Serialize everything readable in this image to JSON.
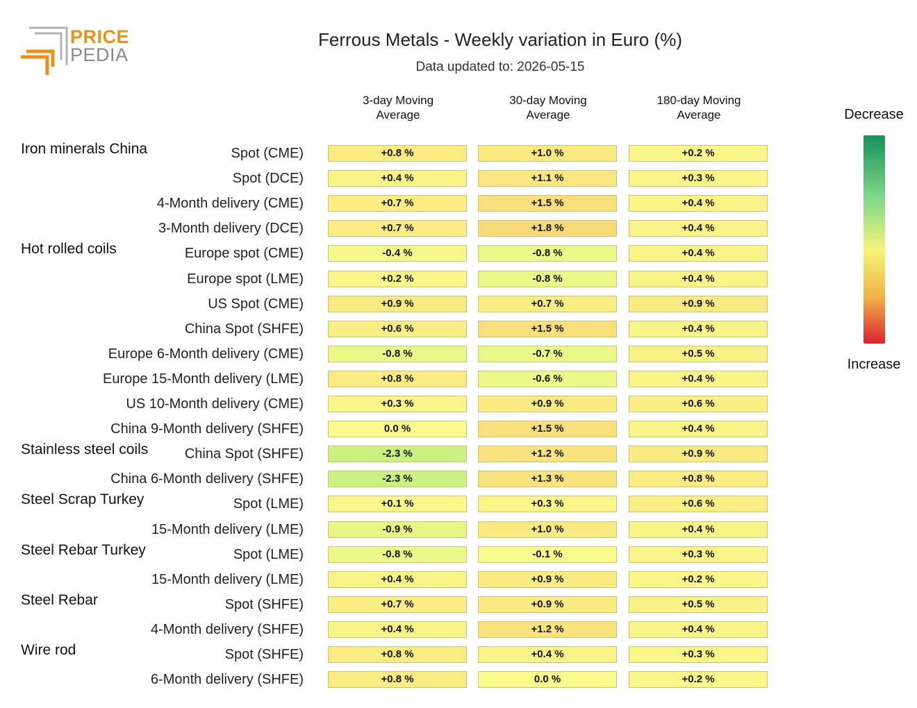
{
  "logo": {
    "top": "PRICE",
    "bottom": "PEDIA"
  },
  "title": "Ferrous Metals - Weekly variation in Euro (%)",
  "subtitle": "Data updated to: 2026-05-15",
  "legend": {
    "top": "Decrease",
    "bottom": "Increase",
    "colors": [
      "#1a8f5a",
      "#7ed98a",
      "#f5f57a",
      "#f2b04a",
      "#d9232e"
    ]
  },
  "chart_data": {
    "type": "heatmap",
    "title": "Ferrous Metals - Weekly variation in Euro (%)",
    "columns": [
      "3-day Moving Average",
      "30-day Moving Average",
      "180-day Moving Average"
    ],
    "column_lines": [
      [
        "3-day Moving",
        "Average"
      ],
      [
        "30-day Moving",
        "Average"
      ],
      [
        "180-day Moving",
        "Average"
      ]
    ],
    "unit": "%",
    "rows": [
      {
        "group": "Iron minerals China",
        "label": "Spot (CME)",
        "values": [
          0.8,
          1.0,
          0.2
        ],
        "text": [
          "+0.8 %",
          "+1.0 %",
          "+0.2 %"
        ]
      },
      {
        "group": "",
        "label": "Spot (DCE)",
        "values": [
          0.4,
          1.1,
          0.3
        ],
        "text": [
          "+0.4 %",
          "+1.1 %",
          "+0.3 %"
        ]
      },
      {
        "group": "",
        "label": "4-Month delivery (CME)",
        "values": [
          0.7,
          1.5,
          0.4
        ],
        "text": [
          "+0.7 %",
          "+1.5 %",
          "+0.4 %"
        ]
      },
      {
        "group": "",
        "label": "3-Month delivery (DCE)",
        "values": [
          0.7,
          1.8,
          0.4
        ],
        "text": [
          "+0.7 %",
          "+1.8 %",
          "+0.4 %"
        ]
      },
      {
        "group": "Hot rolled coils",
        "label": "Europe spot (CME)",
        "values": [
          -0.4,
          -0.8,
          0.4
        ],
        "text": [
          "-0.4 %",
          "-0.8 %",
          "+0.4 %"
        ]
      },
      {
        "group": "",
        "label": "Europe spot (LME)",
        "values": [
          0.2,
          -0.8,
          0.4
        ],
        "text": [
          "+0.2 %",
          "-0.8 %",
          "+0.4 %"
        ]
      },
      {
        "group": "",
        "label": "US Spot (CME)",
        "values": [
          0.9,
          0.7,
          0.9
        ],
        "text": [
          "+0.9 %",
          "+0.7 %",
          "+0.9 %"
        ]
      },
      {
        "group": "",
        "label": "China Spot (SHFE)",
        "values": [
          0.6,
          1.5,
          0.4
        ],
        "text": [
          "+0.6 %",
          "+1.5 %",
          "+0.4 %"
        ]
      },
      {
        "group": "",
        "label": "Europe 6-Month delivery (CME)",
        "values": [
          -0.8,
          -0.7,
          0.5
        ],
        "text": [
          "-0.8 %",
          "-0.7 %",
          "+0.5 %"
        ]
      },
      {
        "group": "",
        "label": "Europe 15-Month delivery (LME)",
        "values": [
          0.8,
          -0.6,
          0.4
        ],
        "text": [
          "+0.8 %",
          "-0.6 %",
          "+0.4 %"
        ]
      },
      {
        "group": "",
        "label": "US 10-Month delivery (CME)",
        "values": [
          0.3,
          0.9,
          0.6
        ],
        "text": [
          "+0.3 %",
          "+0.9 %",
          "+0.6 %"
        ]
      },
      {
        "group": "",
        "label": "China 9-Month delivery (SHFE)",
        "values": [
          0.0,
          1.5,
          0.4
        ],
        "text": [
          "0.0 %",
          "+1.5 %",
          "+0.4 %"
        ]
      },
      {
        "group": "Stainless steel coils",
        "label": "China Spot (SHFE)",
        "values": [
          -2.3,
          1.2,
          0.9
        ],
        "text": [
          "-2.3 %",
          "+1.2 %",
          "+0.9 %"
        ]
      },
      {
        "group": "",
        "label": "China 6-Month delivery (SHFE)",
        "values": [
          -2.3,
          1.3,
          0.8
        ],
        "text": [
          "-2.3 %",
          "+1.3 %",
          "+0.8 %"
        ]
      },
      {
        "group": "Steel Scrap Turkey",
        "label": "Spot (LME)",
        "values": [
          0.1,
          0.3,
          0.6
        ],
        "text": [
          "+0.1 %",
          "+0.3 %",
          "+0.6 %"
        ]
      },
      {
        "group": "",
        "label": "15-Month delivery (LME)",
        "values": [
          -0.9,
          1.0,
          0.4
        ],
        "text": [
          "-0.9 %",
          "+1.0 %",
          "+0.4 %"
        ]
      },
      {
        "group": "Steel Rebar Turkey",
        "label": "Spot (LME)",
        "values": [
          -0.8,
          -0.1,
          0.3
        ],
        "text": [
          "-0.8 %",
          "-0.1 %",
          "+0.3 %"
        ]
      },
      {
        "group": "",
        "label": "15-Month delivery (LME)",
        "values": [
          0.4,
          0.9,
          0.2
        ],
        "text": [
          "+0.4 %",
          "+0.9 %",
          "+0.2 %"
        ]
      },
      {
        "group": "Steel Rebar",
        "label": "Spot (SHFE)",
        "values": [
          0.7,
          0.9,
          0.5
        ],
        "text": [
          "+0.7 %",
          "+0.9 %",
          "+0.5 %"
        ]
      },
      {
        "group": "",
        "label": "4-Month delivery (SHFE)",
        "values": [
          0.4,
          1.2,
          0.4
        ],
        "text": [
          "+0.4 %",
          "+1.2 %",
          "+0.4 %"
        ]
      },
      {
        "group": "Wire rod",
        "label": "Spot (SHFE)",
        "values": [
          0.8,
          0.4,
          0.3
        ],
        "text": [
          "+0.8 %",
          "+0.4 %",
          "+0.3 %"
        ]
      },
      {
        "group": "",
        "label": "6-Month delivery (SHFE)",
        "values": [
          0.8,
          0.0,
          0.2
        ],
        "text": [
          "+0.8 %",
          "0.0 %",
          "+0.2 %"
        ]
      }
    ]
  }
}
